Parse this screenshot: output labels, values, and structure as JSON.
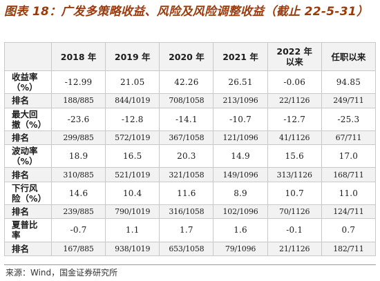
{
  "title": "图表 18：广发多策略收益、风险及风险调整收益（截止 22-5-31）",
  "table": {
    "headers": [
      "",
      "2018 年",
      "2019 年",
      "2020 年",
      "2021 年",
      "2022 年\n以来",
      "任职以来"
    ],
    "rows": [
      {
        "label": "收益率\n（%）",
        "cells": [
          "-12.99",
          "21.05",
          "42.26",
          "26.51",
          "-0.06",
          "94.85"
        ]
      },
      {
        "label": "排名",
        "cells": [
          "188/885",
          "844/1019",
          "708/1058",
          "213/1096",
          "22/1126",
          "249/711"
        ]
      },
      {
        "label": "最大回\n撤（%）",
        "cells": [
          "-23.6",
          "-12.8",
          "-14.1",
          "-10.7",
          "-12.7",
          "-25.3"
        ]
      },
      {
        "label": "排名",
        "cells": [
          "299/885",
          "572/1019",
          "367/1058",
          "121/1096",
          "41/1126",
          "67/711"
        ]
      },
      {
        "label": "波动率\n（%）",
        "cells": [
          "18.9",
          "16.5",
          "20.3",
          "14.9",
          "15.6",
          "17.0"
        ]
      },
      {
        "label": "排名",
        "cells": [
          "310/885",
          "521/1019",
          "321/1058",
          "149/1096",
          "313/1126",
          "168/711"
        ]
      },
      {
        "label": "下行风\n险（%）",
        "cells": [
          "14.6",
          "10.4",
          "11.6",
          "8.9",
          "10.7",
          "11.0"
        ]
      },
      {
        "label": "排名",
        "cells": [
          "239/885",
          "790/1019",
          "316/1058",
          "102/1096",
          "70/1126",
          "124/711"
        ]
      },
      {
        "label": "夏普比\n率",
        "cells": [
          "-0.7",
          "1.1",
          "1.7",
          "1.6",
          "-0.1",
          "0.7"
        ]
      },
      {
        "label": "排名",
        "cells": [
          "167/885",
          "938/1019",
          "653/1058",
          "79/1096",
          "21/1126",
          "182/711"
        ]
      }
    ]
  },
  "source": "来源：Wind，国金证券研究所"
}
